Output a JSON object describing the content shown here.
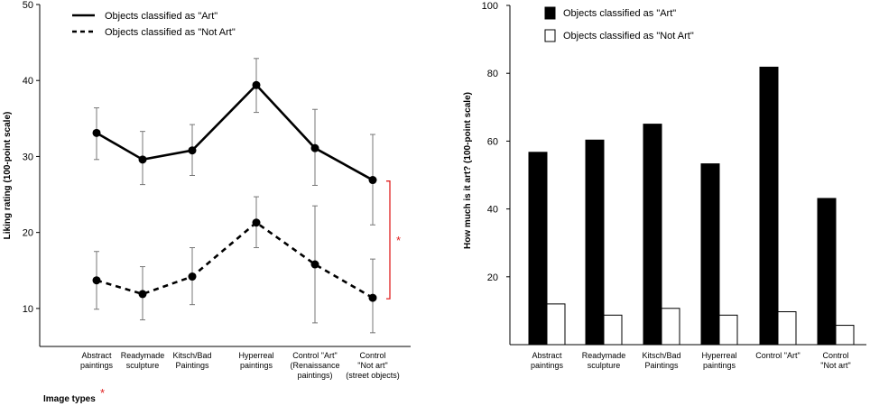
{
  "chart_data": [
    {
      "type": "line",
      "title": "",
      "xlabel": "Image types",
      "xlabel_marker": "*",
      "ylabel": "Liking rating (100-point scale)",
      "ylim": [
        5,
        50
      ],
      "yticks": [
        10,
        20,
        30,
        40,
        50
      ],
      "categories": [
        [
          "Abstract",
          "paintings"
        ],
        [
          "Readymade",
          "sculpture"
        ],
        [
          "Kitsch/Bad",
          "Paintings"
        ],
        [
          "Hyperreal",
          "paintings"
        ],
        [
          "Control \"Art\"",
          "(Renaissance",
          "paintings)"
        ],
        [
          "Control",
          "\"Not art\"",
          "(street objects)"
        ]
      ],
      "series": [
        {
          "name": "Objects classified as \"Art\"",
          "style": "solid",
          "values": [
            33.1,
            29.6,
            30.8,
            39.4,
            31.1,
            26.9
          ],
          "error_low": [
            29.6,
            26.3,
            27.5,
            35.8,
            26.2,
            21.0
          ],
          "error_high": [
            36.4,
            33.3,
            34.2,
            42.9,
            36.2,
            32.9
          ]
        },
        {
          "name": "Objects classified as \"Not Art\"",
          "style": "dashed",
          "values": [
            13.7,
            11.9,
            14.2,
            21.3,
            15.8,
            11.4
          ],
          "error_low": [
            9.9,
            8.5,
            10.5,
            18.0,
            8.1,
            6.8
          ],
          "error_high": [
            17.5,
            15.5,
            18.0,
            24.7,
            23.5,
            16.5
          ]
        }
      ],
      "significance": {
        "category_index": 5,
        "from": 27.0,
        "to": 11.4,
        "label": "*",
        "color": "#e02020"
      },
      "legend": "top-left"
    },
    {
      "type": "bar",
      "title": "",
      "xlabel": "",
      "ylabel": "How much is it art? (100-point scale)",
      "ylim": [
        0,
        100
      ],
      "yticks": [
        20,
        40,
        60,
        80,
        100
      ],
      "categories": [
        [
          "Abstract",
          "paintings"
        ],
        [
          "Readymade",
          "sculpture"
        ],
        [
          "Kitsch/Bad",
          "Paintings"
        ],
        [
          "Hyperreal",
          "paintings"
        ],
        [
          "Control \"Art\""
        ],
        [
          "Control",
          "\"Not art\""
        ]
      ],
      "series": [
        {
          "name": "Objects classified as \"Art\"",
          "color": "#000000",
          "values": [
            56.7,
            60.3,
            65.0,
            53.3,
            81.8,
            43.1
          ]
        },
        {
          "name": "Objects classified as \"Not Art\"",
          "color": "#ffffff",
          "values": [
            12.0,
            8.7,
            10.7,
            8.7,
            9.7,
            5.7
          ]
        }
      ],
      "legend": "top-left"
    }
  ]
}
